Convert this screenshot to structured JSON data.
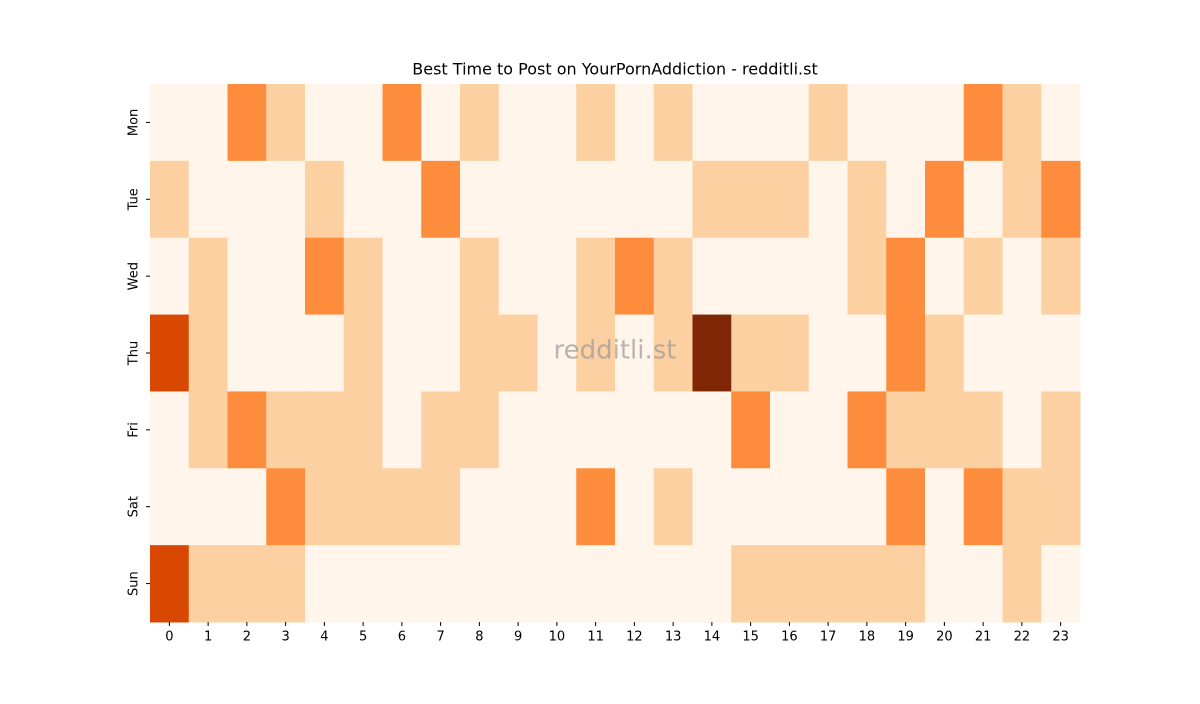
{
  "chart_data": {
    "type": "heatmap",
    "title": "Best Time to Post on YourPornAddiction - redditli.st",
    "watermark": "redditli.st",
    "x": [
      0,
      1,
      2,
      3,
      4,
      5,
      6,
      7,
      8,
      9,
      10,
      11,
      12,
      13,
      14,
      15,
      16,
      17,
      18,
      19,
      20,
      21,
      22,
      23
    ],
    "y": [
      "Mon",
      "Tue",
      "Wed",
      "Thu",
      "Fri",
      "Sat",
      "Sun"
    ],
    "colorscale": [
      "#fff5eb",
      "#fdd0a2",
      "#fd8d3c",
      "#d94801",
      "#7f2704"
    ],
    "values": [
      [
        0,
        0,
        2,
        1,
        0,
        0,
        2,
        0,
        1,
        0,
        0,
        1,
        0,
        1,
        0,
        0,
        0,
        1,
        0,
        0,
        0,
        2,
        1,
        0
      ],
      [
        1,
        0,
        0,
        0,
        1,
        0,
        0,
        2,
        0,
        0,
        0,
        0,
        0,
        0,
        1,
        1,
        1,
        0,
        1,
        0,
        2,
        0,
        1,
        2
      ],
      [
        0,
        1,
        0,
        0,
        2,
        1,
        0,
        0,
        1,
        0,
        0,
        1,
        2,
        1,
        0,
        0,
        0,
        0,
        1,
        2,
        0,
        1,
        0,
        1
      ],
      [
        3,
        1,
        0,
        0,
        0,
        1,
        0,
        0,
        1,
        1,
        0,
        1,
        0,
        1,
        4,
        1,
        1,
        0,
        0,
        2,
        1,
        0,
        0,
        0
      ],
      [
        0,
        1,
        2,
        1,
        1,
        1,
        0,
        1,
        1,
        0,
        0,
        0,
        0,
        0,
        0,
        2,
        0,
        0,
        2,
        1,
        1,
        1,
        0,
        1
      ],
      [
        0,
        0,
        0,
        2,
        1,
        1,
        1,
        1,
        0,
        0,
        0,
        2,
        0,
        1,
        0,
        0,
        0,
        0,
        0,
        2,
        0,
        2,
        1,
        1
      ],
      [
        3,
        1,
        1,
        1,
        0,
        0,
        0,
        0,
        0,
        0,
        0,
        0,
        0,
        0,
        0,
        1,
        1,
        1,
        1,
        1,
        0,
        0,
        1,
        0
      ]
    ]
  }
}
